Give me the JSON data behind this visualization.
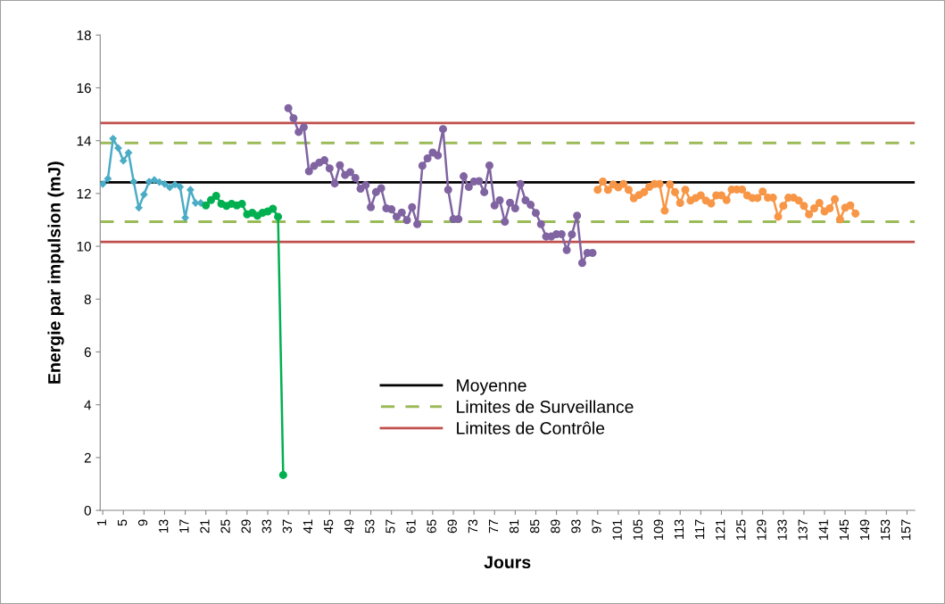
{
  "chart_data": {
    "type": "line",
    "xlabel": "Jours",
    "ylabel": "Energie par impulsion (mJ)",
    "xlim": [
      0.5,
      158.5
    ],
    "xticks": [
      1,
      5,
      9,
      13,
      17,
      21,
      25,
      29,
      33,
      37,
      41,
      45,
      49,
      53,
      57,
      61,
      65,
      69,
      73,
      77,
      81,
      85,
      89,
      93,
      97,
      101,
      105,
      109,
      113,
      117,
      121,
      125,
      129,
      133,
      137,
      141,
      145,
      149,
      153,
      157
    ],
    "ylim": [
      0,
      18
    ],
    "yticks": [
      0,
      2,
      4,
      6,
      8,
      10,
      12,
      14,
      16,
      18
    ],
    "grid": false,
    "legend": "bottom",
    "series": [
      {
        "color": "#4bacc6",
        "marker": "diamond",
        "x": [
          1,
          2,
          3,
          4,
          5,
          6,
          7,
          8,
          9,
          10,
          11,
          12,
          13,
          14,
          15,
          16,
          17,
          18,
          19,
          20
        ],
        "values": [
          12.36,
          12.56,
          14.08,
          13.72,
          13.24,
          13.54,
          12.45,
          11.46,
          11.96,
          12.45,
          12.51,
          12.43,
          12.36,
          12.23,
          12.34,
          12.25,
          11.08,
          12.14,
          11.64,
          11.64
        ]
      },
      {
        "color": "#00b050",
        "marker": "circle",
        "x": [
          21,
          22,
          23,
          24,
          25,
          26,
          27,
          28,
          29,
          30,
          31,
          32,
          33,
          34,
          35,
          36
        ],
        "values": [
          11.55,
          11.75,
          11.91,
          11.61,
          11.53,
          11.61,
          11.55,
          11.61,
          11.21,
          11.27,
          11.16,
          11.27,
          11.32,
          11.42,
          11.12,
          1.34
        ]
      },
      {
        "color": "#8064a2",
        "marker": "circle",
        "x": [
          37,
          38,
          39,
          40,
          41,
          42,
          43,
          44,
          45,
          46,
          47,
          48,
          49,
          50,
          51,
          52,
          53,
          54,
          55,
          56,
          57,
          58,
          59,
          60,
          61,
          62,
          63,
          64,
          65,
          66,
          67,
          68,
          69,
          70,
          71,
          72,
          73,
          74,
          75,
          76,
          77,
          78,
          79,
          80,
          81,
          82,
          83,
          84,
          85,
          86,
          87,
          88,
          89,
          90,
          91,
          92,
          93,
          94,
          95,
          96
        ],
        "values": [
          15.23,
          14.85,
          14.33,
          14.51,
          12.84,
          13.04,
          13.17,
          13.26,
          12.95,
          12.38,
          13.07,
          12.7,
          12.81,
          12.59,
          12.18,
          12.32,
          11.48,
          12.05,
          12.2,
          11.44,
          11.4,
          11.12,
          11.28,
          10.99,
          11.48,
          10.84,
          13.05,
          13.33,
          13.55,
          13.44,
          14.44,
          12.14,
          11.03,
          11.03,
          12.65,
          12.25,
          12.45,
          12.47,
          12.05,
          13.06,
          11.55,
          11.74,
          10.93,
          11.65,
          11.44,
          12.36,
          11.74,
          11.57,
          11.26,
          10.84,
          10.37,
          10.37,
          10.46,
          10.46,
          9.86,
          10.45,
          11.16,
          9.37,
          9.75,
          9.75
        ]
      },
      {
        "color": "#f79646",
        "marker": "circle",
        "x": [
          97,
          98,
          99,
          100,
          101,
          102,
          103,
          104,
          105,
          106,
          107,
          108,
          109,
          110,
          111,
          112,
          113,
          114,
          115,
          116,
          117,
          118,
          119,
          120,
          121,
          122,
          123,
          124,
          125,
          126,
          127,
          128,
          129,
          130,
          131,
          132,
          133,
          134,
          135,
          136,
          137,
          138,
          139,
          140,
          141,
          142,
          143,
          144,
          145,
          146,
          147
        ],
        "values": [
          12.14,
          12.45,
          12.14,
          12.34,
          12.23,
          12.36,
          12.14,
          11.82,
          11.94,
          12.05,
          12.25,
          12.36,
          12.36,
          11.35,
          12.34,
          12.05,
          11.64,
          12.14,
          11.73,
          11.83,
          11.93,
          11.73,
          11.62,
          11.93,
          11.93,
          11.75,
          12.15,
          12.15,
          12.15,
          11.93,
          11.83,
          11.83,
          12.07,
          11.84,
          11.84,
          11.12,
          11.53,
          11.84,
          11.84,
          11.73,
          11.53,
          11.21,
          11.44,
          11.64,
          11.32,
          11.44,
          11.78,
          11.02,
          11.46,
          11.55,
          11.24
        ]
      }
    ],
    "ref_lines": [
      {
        "axis": "y",
        "value": 12.42,
        "label": "Moyenne",
        "color": "#000000",
        "line_style": "solid"
      },
      {
        "axis": "y",
        "value": 13.91,
        "label": "Limites de Surveillance",
        "color": "#9bbb59",
        "line_style": "dashed"
      },
      {
        "axis": "y",
        "value": 10.93,
        "label": null,
        "color": "#9bbb59",
        "line_style": "dashed"
      },
      {
        "axis": "y",
        "value": 14.67,
        "label": "Limites de Contrôle",
        "color": "#c0504d",
        "line_style": "solid"
      },
      {
        "axis": "y",
        "value": 10.17,
        "label": null,
        "color": "#c0504d",
        "line_style": "solid"
      }
    ]
  }
}
